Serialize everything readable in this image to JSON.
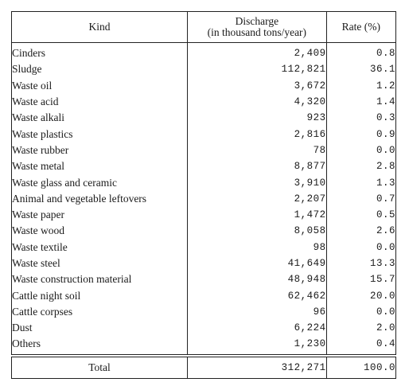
{
  "header": {
    "kind": "Kind",
    "discharge_line1": "Discharge",
    "discharge_line2": "(in thousand tons/year)",
    "rate": "Rate (%)"
  },
  "rows": [
    {
      "kind": "Cinders",
      "discharge": "2,409",
      "rate": "0.8"
    },
    {
      "kind": "Sludge",
      "discharge": "112,821",
      "rate": "36.1"
    },
    {
      "kind": "Waste oil",
      "discharge": "3,672",
      "rate": "1.2"
    },
    {
      "kind": "Waste acid",
      "discharge": "4,320",
      "rate": "1.4"
    },
    {
      "kind": "Waste alkali",
      "discharge": "923",
      "rate": "0.3"
    },
    {
      "kind": "Waste plastics",
      "discharge": "2,816",
      "rate": "0.9"
    },
    {
      "kind": "Waste rubber",
      "discharge": "78",
      "rate": "0.0"
    },
    {
      "kind": "Waste metal",
      "discharge": "8,877",
      "rate": "2.8"
    },
    {
      "kind": "Waste glass and ceramic",
      "discharge": "3,910",
      "rate": "1.3"
    },
    {
      "kind": "Animal and vegetable leftovers",
      "discharge": "2,207",
      "rate": "0.7"
    },
    {
      "kind": "Waste paper",
      "discharge": "1,472",
      "rate": "0.5"
    },
    {
      "kind": "Waste wood",
      "discharge": "8,058",
      "rate": "2.6"
    },
    {
      "kind": "Waste textile",
      "discharge": "98",
      "rate": "0.0"
    },
    {
      "kind": "Waste steel",
      "discharge": "41,649",
      "rate": "13.3"
    },
    {
      "kind": "Waste construction material",
      "discharge": "48,948",
      "rate": "15.7"
    },
    {
      "kind": "Cattle night soil",
      "discharge": "62,462",
      "rate": "20.0"
    },
    {
      "kind": "Cattle corpses",
      "discharge": "96",
      "rate": "0.0"
    },
    {
      "kind": "Dust",
      "discharge": "6,224",
      "rate": "2.0"
    },
    {
      "kind": "Others",
      "discharge": "1,230",
      "rate": "0.4"
    }
  ],
  "total": {
    "kind": "Total",
    "discharge": "312,271",
    "rate": "100.0"
  }
}
